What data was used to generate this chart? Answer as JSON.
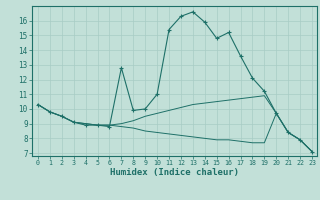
{
  "xlabel": "Humidex (Indice chaleur)",
  "bg_color": "#c2e0d8",
  "line_color": "#1e7068",
  "grid_color": "#a8ccc5",
  "xlim": [
    -0.5,
    23.4
  ],
  "ylim": [
    6.8,
    17.0
  ],
  "yticks": [
    7,
    8,
    9,
    10,
    11,
    12,
    13,
    14,
    15,
    16
  ],
  "xticks": [
    0,
    1,
    2,
    3,
    4,
    5,
    6,
    7,
    8,
    9,
    10,
    11,
    12,
    13,
    14,
    15,
    16,
    17,
    18,
    19,
    20,
    21,
    22,
    23
  ],
  "line1_x": [
    0,
    1,
    2,
    3,
    4,
    5,
    6,
    7,
    8,
    9,
    10,
    11,
    12,
    13,
    14,
    15,
    16,
    17,
    18,
    19,
    20,
    21,
    22,
    23
  ],
  "line1_y": [
    10.3,
    9.8,
    9.5,
    9.1,
    8.9,
    8.9,
    8.8,
    12.8,
    9.9,
    10.0,
    11.0,
    15.4,
    16.3,
    16.6,
    15.9,
    14.8,
    15.2,
    13.6,
    12.1,
    11.2,
    9.7,
    8.4,
    7.9,
    7.1
  ],
  "line2_x": [
    0,
    1,
    2,
    3,
    4,
    5,
    6,
    7,
    8,
    9,
    10,
    11,
    12,
    13,
    14,
    15,
    16,
    17,
    18,
    19,
    20,
    21,
    22,
    23
  ],
  "line2_y": [
    10.3,
    9.8,
    9.5,
    9.1,
    9.0,
    8.9,
    8.9,
    9.0,
    9.2,
    9.5,
    9.7,
    9.9,
    10.1,
    10.3,
    10.4,
    10.5,
    10.6,
    10.7,
    10.8,
    10.9,
    9.7,
    8.4,
    7.9,
    7.1
  ],
  "line3_x": [
    0,
    1,
    2,
    3,
    4,
    5,
    6,
    7,
    8,
    9,
    10,
    11,
    12,
    13,
    14,
    15,
    16,
    17,
    18,
    19,
    20,
    21,
    22,
    23
  ],
  "line3_y": [
    10.3,
    9.8,
    9.5,
    9.1,
    9.0,
    8.9,
    8.9,
    8.8,
    8.7,
    8.5,
    8.4,
    8.3,
    8.2,
    8.1,
    8.0,
    7.9,
    7.9,
    7.8,
    7.7,
    7.7,
    9.7,
    8.4,
    7.9,
    7.1
  ]
}
